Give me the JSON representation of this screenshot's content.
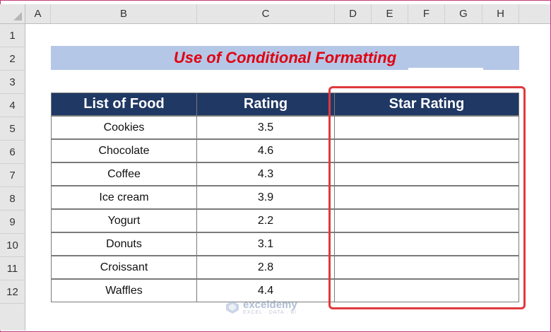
{
  "sheet": {
    "columns": [
      "A",
      "B",
      "C",
      "D",
      "E",
      "F",
      "G",
      "H"
    ],
    "rows": [
      "1",
      "2",
      "3",
      "4",
      "5",
      "6",
      "7",
      "8",
      "9",
      "10",
      "11",
      "12"
    ]
  },
  "title": "Use of Conditional Formatting",
  "table": {
    "headers": [
      "List of Food",
      "Rating",
      "Star Rating"
    ],
    "rows": [
      {
        "food": "Cookies",
        "rating": "3.5",
        "star": ""
      },
      {
        "food": "Chocolate",
        "rating": "4.6",
        "star": ""
      },
      {
        "food": "Coffee",
        "rating": "4.3",
        "star": ""
      },
      {
        "food": "Ice cream",
        "rating": "3.9",
        "star": ""
      },
      {
        "food": "Yogurt",
        "rating": "2.2",
        "star": ""
      },
      {
        "food": "Donuts",
        "rating": "3.1",
        "star": ""
      },
      {
        "food": "Croissant",
        "rating": "2.8",
        "star": ""
      },
      {
        "food": "Waffles",
        "rating": "4.4",
        "star": ""
      }
    ]
  },
  "watermark": {
    "name": "exceldemy",
    "tagline": "EXCEL · DATA · BI"
  },
  "colors": {
    "header_fill": "#1f3864",
    "title_fill": "#b4c7e7",
    "title_text": "#e2000f",
    "highlight": "#e0393e"
  }
}
